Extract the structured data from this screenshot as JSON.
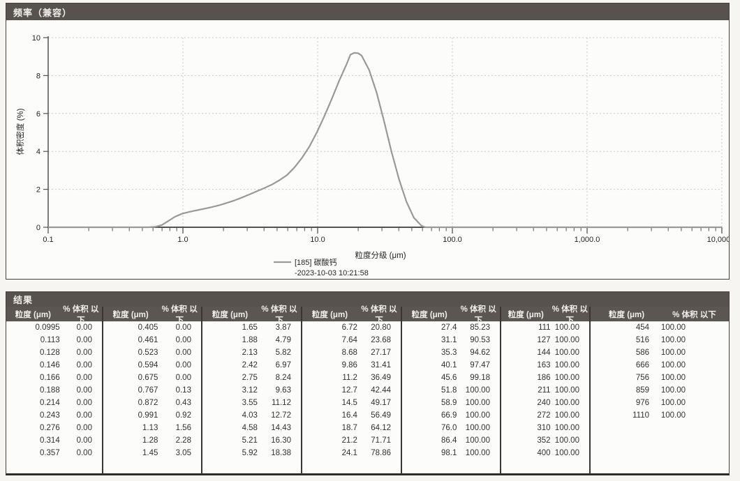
{
  "chart_panel": {
    "title": "频率（兼容）",
    "xlabel": "粒度分级 (μm)",
    "ylabel": "体积密度 (%)",
    "legend": {
      "label": "[185] 碳酸钙",
      "timestamp": "-2023-10-03 10:21:58"
    },
    "x_ticks": [
      {
        "v": 0.1,
        "label": "0.1"
      },
      {
        "v": 1,
        "label": "1.0"
      },
      {
        "v": 10,
        "label": "10.0"
      },
      {
        "v": 100,
        "label": "100.0"
      },
      {
        "v": 1000,
        "label": "1,000.0"
      },
      {
        "v": 10000,
        "label": "10,000.0"
      }
    ],
    "y_ticks": [
      0,
      2,
      4,
      6,
      8,
      10
    ]
  },
  "chart_data": {
    "type": "line",
    "title": "频率（兼容）",
    "xlabel": "粒度分级 (μm)",
    "ylabel": "体积密度 (%)",
    "x_scale": "log",
    "xlim": [
      0.1,
      10000
    ],
    "ylim": [
      0,
      10
    ],
    "grid": true,
    "legend_position": "bottom",
    "series": [
      {
        "name": "[185] 碳酸钙 -2023-10-03 10:21:58",
        "color": "#9a9994",
        "points": [
          [
            0.1,
            0
          ],
          [
            0.3,
            0
          ],
          [
            0.45,
            0
          ],
          [
            0.55,
            0
          ],
          [
            0.62,
            0.02
          ],
          [
            0.7,
            0.12
          ],
          [
            0.767,
            0.3
          ],
          [
            0.872,
            0.55
          ],
          [
            0.991,
            0.72
          ],
          [
            1.13,
            0.82
          ],
          [
            1.28,
            0.9
          ],
          [
            1.45,
            0.98
          ],
          [
            1.65,
            1.07
          ],
          [
            1.88,
            1.17
          ],
          [
            2.13,
            1.29
          ],
          [
            2.42,
            1.42
          ],
          [
            2.75,
            1.57
          ],
          [
            3.12,
            1.73
          ],
          [
            3.55,
            1.9
          ],
          [
            4.03,
            2.07
          ],
          [
            4.58,
            2.25
          ],
          [
            5.21,
            2.48
          ],
          [
            5.92,
            2.75
          ],
          [
            6.72,
            3.15
          ],
          [
            7.64,
            3.65
          ],
          [
            8.68,
            4.25
          ],
          [
            9.86,
            5.0
          ],
          [
            11.2,
            5.85
          ],
          [
            12.7,
            6.75
          ],
          [
            14.5,
            7.75
          ],
          [
            16.4,
            8.6
          ],
          [
            17.5,
            9.1
          ],
          [
            18.7,
            9.2
          ],
          [
            20,
            9.18
          ],
          [
            21.2,
            9.05
          ],
          [
            24.1,
            8.3
          ],
          [
            27.4,
            7.1
          ],
          [
            31.1,
            5.6
          ],
          [
            35.3,
            4.0
          ],
          [
            40.1,
            2.55
          ],
          [
            45.6,
            1.35
          ],
          [
            51.8,
            0.5
          ],
          [
            58.9,
            0.08
          ],
          [
            63,
            0
          ],
          [
            100,
            0
          ],
          [
            1000,
            0
          ],
          [
            10000,
            0
          ]
        ]
      }
    ]
  },
  "results": {
    "title": "结果",
    "size_header": "粒度 (μm)",
    "pct_header": "% 体积 以下",
    "groups": [
      [
        [
          "0.0995",
          "0.00"
        ],
        [
          "0.113",
          "0.00"
        ],
        [
          "0.128",
          "0.00"
        ],
        [
          "0.146",
          "0.00"
        ],
        [
          "0.166",
          "0.00"
        ],
        [
          "0.188",
          "0.00"
        ],
        [
          "0.214",
          "0.00"
        ],
        [
          "0.243",
          "0.00"
        ],
        [
          "0.276",
          "0.00"
        ],
        [
          "0.314",
          "0.00"
        ],
        [
          "0.357",
          "0.00"
        ]
      ],
      [
        [
          "0.405",
          "0.00"
        ],
        [
          "0.461",
          "0.00"
        ],
        [
          "0.523",
          "0.00"
        ],
        [
          "0.594",
          "0.00"
        ],
        [
          "0.675",
          "0.00"
        ],
        [
          "0.767",
          "0.13"
        ],
        [
          "0.872",
          "0.43"
        ],
        [
          "0.991",
          "0.92"
        ],
        [
          "1.13",
          "1.56"
        ],
        [
          "1.28",
          "2.28"
        ],
        [
          "1.45",
          "3.05"
        ]
      ],
      [
        [
          "1.65",
          "3.87"
        ],
        [
          "1.88",
          "4.79"
        ],
        [
          "2.13",
          "5.82"
        ],
        [
          "2.42",
          "6.97"
        ],
        [
          "2.75",
          "8.24"
        ],
        [
          "3.12",
          "9.63"
        ],
        [
          "3.55",
          "11.12"
        ],
        [
          "4.03",
          "12.72"
        ],
        [
          "4.58",
          "14.43"
        ],
        [
          "5.21",
          "16.30"
        ],
        [
          "5.92",
          "18.38"
        ]
      ],
      [
        [
          "6.72",
          "20.80"
        ],
        [
          "7.64",
          "23.68"
        ],
        [
          "8.68",
          "27.17"
        ],
        [
          "9.86",
          "31.41"
        ],
        [
          "11.2",
          "36.49"
        ],
        [
          "12.7",
          "42.44"
        ],
        [
          "14.5",
          "49.17"
        ],
        [
          "16.4",
          "56.49"
        ],
        [
          "18.7",
          "64.12"
        ],
        [
          "21.2",
          "71.71"
        ],
        [
          "24.1",
          "78.86"
        ]
      ],
      [
        [
          "27.4",
          "85.23"
        ],
        [
          "31.1",
          "90.53"
        ],
        [
          "35.3",
          "94.62"
        ],
        [
          "40.1",
          "97.47"
        ],
        [
          "45.6",
          "99.18"
        ],
        [
          "51.8",
          "100.00"
        ],
        [
          "58.9",
          "100.00"
        ],
        [
          "66.9",
          "100.00"
        ],
        [
          "76.0",
          "100.00"
        ],
        [
          "86.4",
          "100.00"
        ],
        [
          "98.1",
          "100.00"
        ]
      ],
      [
        [
          "111",
          "100.00"
        ],
        [
          "127",
          "100.00"
        ],
        [
          "144",
          "100.00"
        ],
        [
          "163",
          "100.00"
        ],
        [
          "186",
          "100.00"
        ],
        [
          "211",
          "100.00"
        ],
        [
          "240",
          "100.00"
        ],
        [
          "272",
          "100.00"
        ],
        [
          "310",
          "100.00"
        ],
        [
          "352",
          "100.00"
        ],
        [
          "400",
          "100.00"
        ]
      ],
      [
        [
          "454",
          "100.00"
        ],
        [
          "516",
          "100.00"
        ],
        [
          "586",
          "100.00"
        ],
        [
          "666",
          "100.00"
        ],
        [
          "756",
          "100.00"
        ],
        [
          "859",
          "100.00"
        ],
        [
          "976",
          "100.00"
        ],
        [
          "1110",
          "100.00"
        ]
      ]
    ]
  }
}
